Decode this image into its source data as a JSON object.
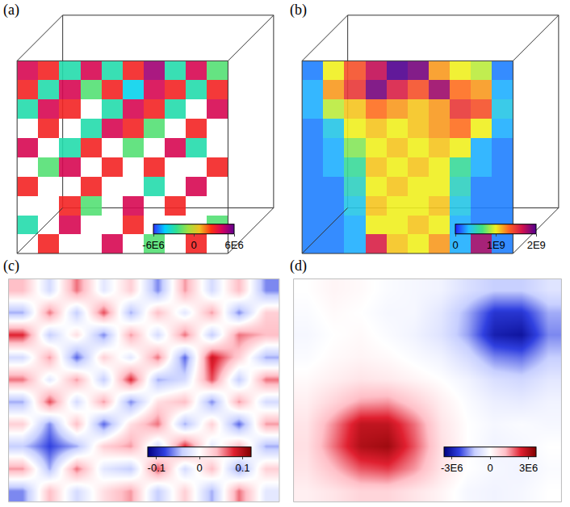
{
  "chart_data": [
    {
      "type": "volume",
      "title": "(a)",
      "tick_labels": false,
      "grid": false,
      "colors": [
        "#3030ff",
        "#00d0ff",
        "#30e090",
        "#a0e040",
        "#f0c020",
        "#ff3010",
        "#d00060",
        "#600090"
      ],
      "zlim": [
        -6000000.0,
        6000000.0
      ],
      "zticks": [
        {
          "value": -6000000.0,
          "label": "-6E6"
        },
        0,
        {
          "value": 6000000.0,
          "label": "6E6"
        }
      ],
      "z": [
        [
          null,
          3000000.0,
          null,
          null,
          4000000.0,
          null,
          -2000000.0,
          null,
          3000000.0,
          null
        ],
        [
          -3000000.0,
          null,
          4000000.0,
          null,
          null,
          3000000.0,
          null,
          null,
          null,
          -2000000.0
        ],
        [
          null,
          null,
          3000000.0,
          -2000000.0,
          null,
          4000000.0,
          null,
          3000000.0,
          null,
          null
        ],
        [
          3000000.0,
          null,
          null,
          3000000.0,
          null,
          null,
          -3000000.0,
          null,
          4000000.0,
          null
        ],
        [
          null,
          -2000000.0,
          4000000.0,
          null,
          3000000.0,
          null,
          3000000.0,
          null,
          null,
          3000000.0
        ],
        [
          4000000.0,
          null,
          -3000000.0,
          3000000.0,
          null,
          -2000000.0,
          null,
          4000000.0,
          -3000000.0,
          null
        ],
        [
          null,
          3000000.0,
          null,
          -3000000.0,
          4000000.0,
          3000000.0,
          -2000000.0,
          null,
          3000000.0,
          null
        ],
        [
          -3000000.0,
          4000000.0,
          3000000.0,
          null,
          -3000000.0,
          4000000.0,
          3000000.0,
          -3000000.0,
          null,
          4000000.0
        ],
        [
          3000000.0,
          -3000000.0,
          4000000.0,
          -2000000.0,
          3000000.0,
          -4000000.0,
          4000000.0,
          3000000.0,
          -3000000.0,
          3000000.0
        ],
        [
          4000000.0,
          3000000.0,
          -3000000.0,
          4000000.0,
          -3000000.0,
          3000000.0,
          5000000.0,
          -3000000.0,
          4000000.0,
          -2000000.0
        ]
      ]
    },
    {
      "type": "volume",
      "title": "(b)",
      "tick_labels": false,
      "grid": false,
      "colors": [
        "#2020ff",
        "#20c0ff",
        "#40e080",
        "#f0f020",
        "#ff6020",
        "#d01050",
        "#500090"
      ],
      "zlim": [
        0,
        2000000000.0
      ],
      "zticks": [
        0,
        {
          "value": 1000000000.0,
          "label": "1E9"
        },
        {
          "value": 2000000000.0,
          "label": "2E9"
        }
      ],
      "z": [
        [
          200000000.0,
          200000000.0,
          300000000.0,
          1600000000.0,
          1100000000.0,
          1000000000.0,
          1200000000.0,
          300000000.0,
          1800000000.0,
          200000000.0
        ],
        [
          200000000.0,
          200000000.0,
          300000000.0,
          1000000000.0,
          1000000000.0,
          1100000000.0,
          1000000000.0,
          300000000.0,
          200000000.0,
          200000000.0
        ],
        [
          200000000.0,
          200000000.0,
          400000000.0,
          1100000000.0,
          1000000000.0,
          1000000000.0,
          1100000000.0,
          400000000.0,
          200000000.0,
          200000000.0
        ],
        [
          200000000.0,
          200000000.0,
          500000000.0,
          1000000000.0,
          1100000000.0,
          1000000000.0,
          1000000000.0,
          500000000.0,
          200000000.0,
          200000000.0
        ],
        [
          200000000.0,
          300000000.0,
          600000000.0,
          1100000000.0,
          1000000000.0,
          1100000000.0,
          1000000000.0,
          600000000.0,
          300000000.0,
          200000000.0
        ],
        [
          200000000.0,
          300000000.0,
          800000000.0,
          1000000000.0,
          1100000000.0,
          1000000000.0,
          1100000000.0,
          1000000000.0,
          300000000.0,
          200000000.0
        ],
        [
          200000000.0,
          400000000.0,
          1000000000.0,
          1100000000.0,
          1000000000.0,
          1100000000.0,
          1200000000.0,
          1300000000.0,
          1000000000.0,
          300000000.0
        ],
        [
          300000000.0,
          900000000.0,
          1100000000.0,
          1300000000.0,
          1200000000.0,
          1100000000.0,
          1200000000.0,
          1500000000.0,
          1400000000.0,
          400000000.0
        ],
        [
          300000000.0,
          1200000000.0,
          1500000000.0,
          1900000000.0,
          1600000000.0,
          1400000000.0,
          1800000000.0,
          1300000000.0,
          1200000000.0,
          300000000.0
        ],
        [
          200000000.0,
          1000000000.0,
          1400000000.0,
          1700000000.0,
          2000000000.0,
          1900000000.0,
          1200000000.0,
          1000000000.0,
          900000000.0,
          200000000.0
        ]
      ]
    },
    {
      "type": "heatmap",
      "title": "(c)",
      "tick_labels": false,
      "grid": false,
      "colors": [
        "#000080",
        "#3040e0",
        "#c8d0ff",
        "#ffffff",
        "#ffc0c8",
        "#e02030",
        "#800000"
      ],
      "zlim": [
        -0.12,
        0.12
      ],
      "zticks": [
        -0.1,
        0,
        0.1
      ],
      "z": [
        [
          -0.06,
          0.04,
          -0.03,
          0.02,
          0.05,
          -0.04,
          0.03,
          -0.05,
          0.06,
          -0.02
        ],
        [
          0.05,
          -0.05,
          0.06,
          -0.02,
          -0.04,
          0.07,
          -0.03,
          0.04,
          -0.06,
          0.03
        ],
        [
          -0.04,
          -0.08,
          -0.05,
          0.03,
          0.05,
          -0.03,
          0.08,
          -0.02,
          0.04,
          -0.05
        ],
        [
          0.03,
          -0.06,
          0.04,
          -0.07,
          0.02,
          0.06,
          -0.05,
          0.03,
          -0.07,
          0.05
        ],
        [
          -0.05,
          0.07,
          -0.03,
          0.05,
          -0.06,
          0.02,
          0.04,
          -0.06,
          0.05,
          -0.03
        ],
        [
          0.06,
          -0.02,
          0.05,
          -0.04,
          0.08,
          -0.05,
          -0.03,
          0.07,
          -0.04,
          0.06
        ],
        [
          -0.03,
          0.05,
          -0.07,
          0.03,
          -0.02,
          0.06,
          -0.07,
          0.09,
          0.03,
          -0.05
        ],
        [
          0.08,
          -0.04,
          0.02,
          -0.06,
          0.05,
          -0.03,
          0.06,
          -0.04,
          0.06,
          0.04
        ],
        [
          -0.05,
          0.06,
          -0.04,
          0.07,
          -0.05,
          0.04,
          -0.02,
          0.05,
          -0.06,
          0.03
        ],
        [
          0.04,
          -0.03,
          0.06,
          -0.02,
          0.03,
          -0.06,
          0.05,
          -0.03,
          0.04,
          -0.06
        ]
      ]
    },
    {
      "type": "heatmap",
      "title": "(d)",
      "tick_labels": false,
      "grid": false,
      "colors": [
        "#000080",
        "#3040e0",
        "#c8d0ff",
        "#ffffff",
        "#ffc0c8",
        "#e02030",
        "#800000"
      ],
      "zlim": [
        -3600000.0,
        3600000.0
      ],
      "zticks": [
        {
          "value": -3000000.0,
          "label": "-3E6"
        },
        0,
        {
          "value": 3000000.0,
          "label": "3E6"
        }
      ],
      "z": [
        [
          300000.0,
          500000.0,
          800000.0,
          800000.0,
          500000.0,
          200000.0,
          -200000.0,
          -300000.0,
          -200000.0,
          0
        ],
        [
          500000.0,
          1200000.0,
          2000000.0,
          2200000.0,
          1500000.0,
          500000.0,
          0,
          -200000.0,
          -300000.0,
          -100000.0
        ],
        [
          600000.0,
          1800000.0,
          3000000.0,
          3200000.0,
          2000000.0,
          600000.0,
          0,
          -300000.0,
          -200000.0,
          0
        ],
        [
          500000.0,
          1600000.0,
          2800000.0,
          2800000.0,
          1800000.0,
          500000.0,
          0,
          -200000.0,
          -100000.0,
          -200000.0
        ],
        [
          300000.0,
          800000.0,
          1400000.0,
          1500000.0,
          900000.0,
          300000.0,
          -100000.0,
          -400000.0,
          -500000.0,
          -300000.0
        ],
        [
          100000.0,
          300000.0,
          500000.0,
          400000.0,
          200000.0,
          0,
          -300000.0,
          -800000.0,
          -1000000.0,
          -600000.0
        ],
        [
          -100000.0,
          100000.0,
          200000.0,
          100000.0,
          -100000.0,
          -300000.0,
          -900000.0,
          -1800000.0,
          -2000000.0,
          -1200000.0
        ],
        [
          -200000.0,
          0,
          100000.0,
          -100000.0,
          -300000.0,
          -700000.0,
          -1600000.0,
          -3000000.0,
          -3200000.0,
          -1800000.0
        ],
        [
          -100000.0,
          100000.0,
          0,
          -200000.0,
          -200000.0,
          -600000.0,
          -1500000.0,
          -2600000.0,
          -2600000.0,
          -1500000.0
        ],
        [
          0,
          200000.0,
          100000.0,
          -100000.0,
          -200000.0,
          -300000.0,
          -800000.0,
          -1200000.0,
          -1200000.0,
          -700000.0
        ]
      ]
    }
  ]
}
